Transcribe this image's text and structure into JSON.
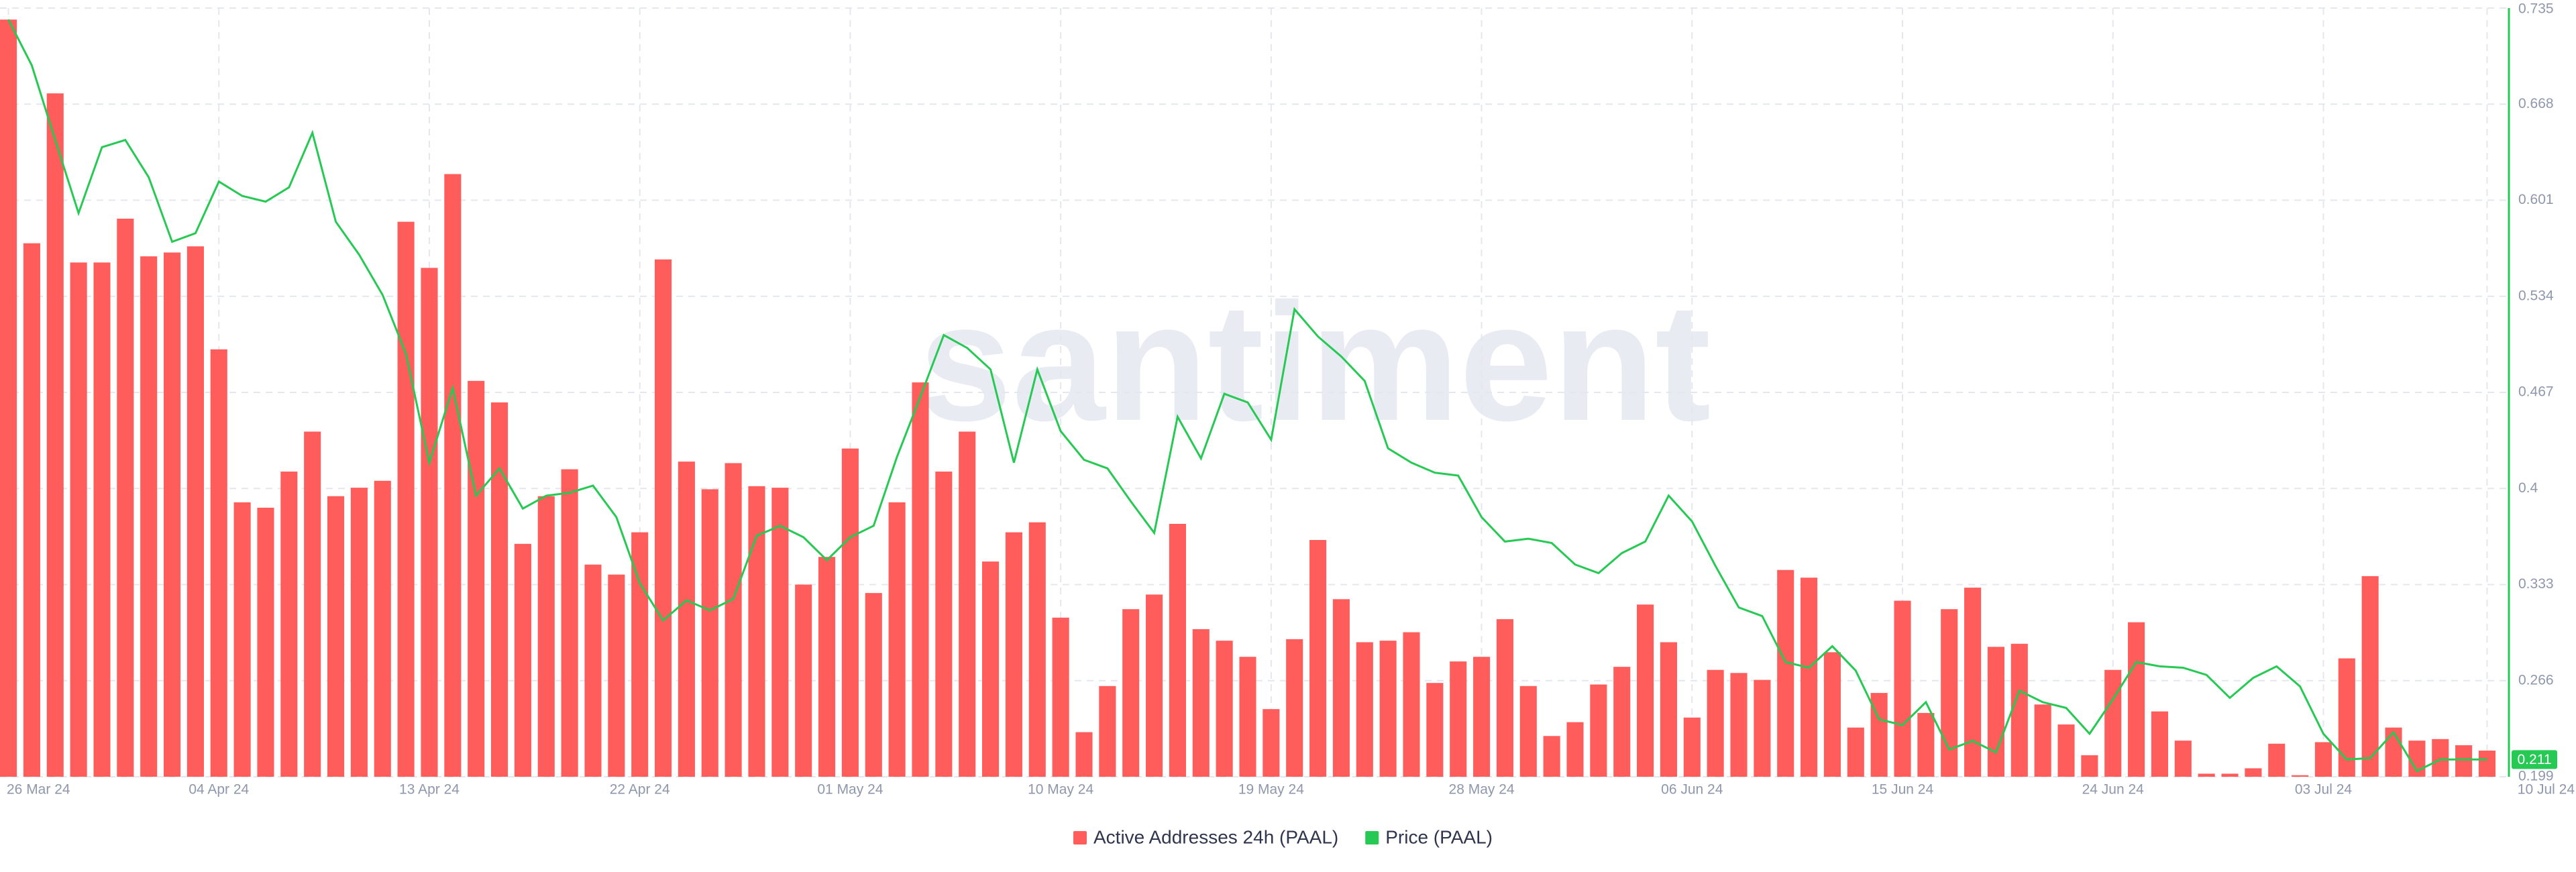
{
  "chart_data": {
    "type": "bar_line",
    "watermark": "santiment",
    "categories": [
      "26 Mar 24",
      null,
      null,
      null,
      null,
      null,
      null,
      null,
      null,
      "04 Apr 24",
      null,
      null,
      null,
      null,
      null,
      null,
      null,
      null,
      "13 Apr 24",
      null,
      null,
      null,
      null,
      null,
      null,
      null,
      null,
      "22 Apr 24",
      null,
      null,
      null,
      null,
      null,
      null,
      null,
      null,
      "01 May 24",
      null,
      null,
      null,
      null,
      null,
      null,
      null,
      null,
      "10 May 24",
      null,
      null,
      null,
      null,
      null,
      null,
      null,
      null,
      "19 May 24",
      null,
      null,
      null,
      null,
      null,
      null,
      null,
      null,
      "28 May 24",
      null,
      null,
      null,
      null,
      null,
      null,
      null,
      null,
      "06 Jun 24",
      null,
      null,
      null,
      null,
      null,
      null,
      null,
      null,
      "15 Jun 24",
      null,
      null,
      null,
      null,
      null,
      null,
      null,
      null,
      "24 Jun 24",
      null,
      null,
      null,
      null,
      null,
      null,
      null,
      null,
      "03 Jul 24",
      null,
      null,
      null,
      null,
      null,
      null,
      "10 Jul 24"
    ],
    "series": [
      {
        "name": "Active Addresses 24h (PAAL)",
        "color": "#ff5c5c",
        "type": "bar",
        "values": [
          98.5,
          69.4,
          88.9,
          66.9,
          66.9,
          72.6,
          67.7,
          68.2,
          69.0,
          55.6,
          35.7,
          35.0,
          39.7,
          44.9,
          36.5,
          37.6,
          38.5,
          72.2,
          66.2,
          78.4,
          51.5,
          48.7,
          30.3,
          36.5,
          40.0,
          27.6,
          26.3,
          31.8,
          67.3,
          41.0,
          37.4,
          40.8,
          37.8,
          37.6,
          25.0,
          28.6,
          42.7,
          23.9,
          35.7,
          51.3,
          39.7,
          44.9,
          28.0,
          31.8,
          33.1,
          20.7,
          5.8,
          11.8,
          21.8,
          23.7,
          32.9,
          19.2,
          17.7,
          15.6,
          8.8,
          17.9,
          30.8,
          23.1,
          17.5,
          17.7,
          18.8,
          12.2,
          15.0,
          15.6,
          20.5,
          11.8,
          5.3,
          7.1,
          12.0,
          14.3,
          22.4,
          17.5,
          7.7,
          13.9,
          13.5,
          12.6,
          26.9,
          25.9,
          16.2,
          6.4,
          10.9,
          22.9,
          8.3,
          21.8,
          24.6,
          16.9,
          17.3,
          9.4,
          6.8,
          2.8,
          13.9,
          20.1,
          8.5,
          4.7,
          0.4,
          0.4,
          1.1,
          4.3,
          0.2,
          4.5,
          15.4,
          26.1,
          6.4,
          4.7,
          4.9,
          4.1,
          3.4
        ]
      },
      {
        "name": "Price (PAAL)",
        "color": "#26c953",
        "type": "line",
        "axis": "y2",
        "values": [
          0.727,
          0.695,
          0.643,
          0.592,
          0.638,
          0.643,
          0.617,
          0.572,
          0.578,
          0.614,
          0.604,
          0.6,
          0.61,
          0.648,
          0.586,
          0.563,
          0.535,
          0.494,
          0.418,
          0.47,
          0.395,
          0.414,
          0.386,
          0.395,
          0.397,
          0.402,
          0.38,
          0.334,
          0.308,
          0.322,
          0.315,
          0.323,
          0.367,
          0.374,
          0.366,
          0.35,
          0.366,
          0.374,
          0.422,
          0.464,
          0.507,
          0.498,
          0.483,
          0.418,
          0.483,
          0.44,
          0.42,
          0.414,
          0.391,
          0.369,
          0.45,
          0.421,
          0.466,
          0.46,
          0.434,
          0.525,
          0.506,
          0.492,
          0.475,
          0.428,
          0.418,
          0.411,
          0.409,
          0.38,
          0.363,
          0.365,
          0.362,
          0.347,
          0.341,
          0.355,
          0.363,
          0.395,
          0.377,
          0.346,
          0.317,
          0.311,
          0.279,
          0.275,
          0.29,
          0.273,
          0.239,
          0.235,
          0.251,
          0.218,
          0.224,
          0.216,
          0.259,
          0.251,
          0.247,
          0.229,
          0.253,
          0.279,
          0.276,
          0.275,
          0.27,
          0.254,
          0.268,
          0.276,
          0.262,
          0.229,
          0.211,
          0.212,
          0.23,
          0.203,
          0.211,
          0.211,
          0.211
        ]
      }
    ],
    "ylim": [
      0,
      100
    ],
    "y2lim": [
      0.199,
      0.735
    ],
    "y2ticks": [
      0.199,
      0.266,
      0.333,
      0.4,
      0.467,
      0.534,
      0.601,
      0.668,
      0.735
    ],
    "grid": true,
    "legend": "bottom"
  }
}
